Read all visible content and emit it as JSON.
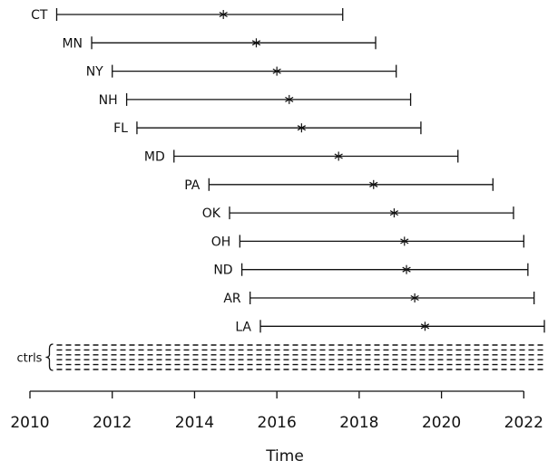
{
  "chart_data": {
    "type": "interval",
    "xlabel": "Time",
    "xlim": [
      2010,
      2022.5
    ],
    "xticks": [
      2010,
      2012,
      2014,
      2016,
      2018,
      2020,
      2022
    ],
    "series": [
      {
        "label": "CT",
        "start": 2010.65,
        "point": 2014.7,
        "end": 2017.6
      },
      {
        "label": "MN",
        "start": 2011.5,
        "point": 2015.5,
        "end": 2018.4
      },
      {
        "label": "NY",
        "start": 2012.0,
        "point": 2016.0,
        "end": 2018.9
      },
      {
        "label": "NH",
        "start": 2012.35,
        "point": 2016.3,
        "end": 2019.25
      },
      {
        "label": "FL",
        "start": 2012.6,
        "point": 2016.6,
        "end": 2019.5
      },
      {
        "label": "MD",
        "start": 2013.5,
        "point": 2017.5,
        "end": 2020.4
      },
      {
        "label": "PA",
        "start": 2014.35,
        "point": 2018.35,
        "end": 2021.25
      },
      {
        "label": "OK",
        "start": 2014.85,
        "point": 2018.85,
        "end": 2021.75
      },
      {
        "label": "OH",
        "start": 2015.1,
        "point": 2019.1,
        "end": 2022.0
      },
      {
        "label": "ND",
        "start": 2015.15,
        "point": 2019.15,
        "end": 2022.1
      },
      {
        "label": "AR",
        "start": 2015.35,
        "point": 2019.35,
        "end": 2022.25
      },
      {
        "label": "LA",
        "start": 2015.6,
        "point": 2019.6,
        "end": 2022.5
      }
    ],
    "controls": {
      "label": "ctrls",
      "line_style": "dashed",
      "line_count": 6,
      "start": 2010.65,
      "end": 2022.5
    }
  }
}
